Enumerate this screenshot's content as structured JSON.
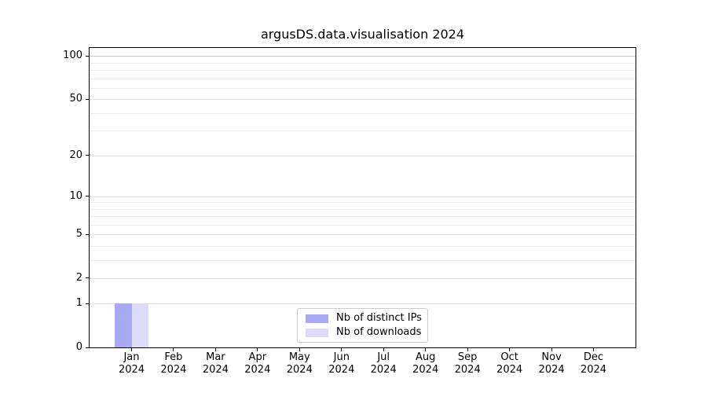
{
  "figure": {
    "title": "argusDS.data.visualisation 2024"
  },
  "chart_data": {
    "type": "bar",
    "title": "argusDS.data.visualisation 2024",
    "xlabel": "",
    "ylabel": "",
    "categories": [
      "Jan",
      "Feb",
      "Mar",
      "Apr",
      "May",
      "Jun",
      "Jul",
      "Aug",
      "Sep",
      "Oct",
      "Nov",
      "Dec"
    ],
    "category_year_label": "2024",
    "series": [
      {
        "name": "Nb of distinct IPs",
        "color": "#a9a9f2",
        "values": [
          1,
          0,
          0,
          0,
          0,
          0,
          0,
          0,
          0,
          0,
          0,
          0
        ]
      },
      {
        "name": "Nb of downloads",
        "color": "#dcdcf8",
        "values": [
          1,
          0,
          0,
          0,
          0,
          0,
          0,
          0,
          0,
          0,
          0,
          0
        ]
      }
    ],
    "yscale": "log1p",
    "ylim": [
      0,
      114
    ],
    "yticks": [
      0,
      1,
      2,
      5,
      10,
      20,
      50,
      100
    ],
    "minor_gridlines": [
      3,
      4,
      6,
      7,
      8,
      9,
      30,
      40,
      60,
      70,
      80,
      90
    ],
    "grid": true,
    "legend_position": "inside-bottom-center"
  }
}
